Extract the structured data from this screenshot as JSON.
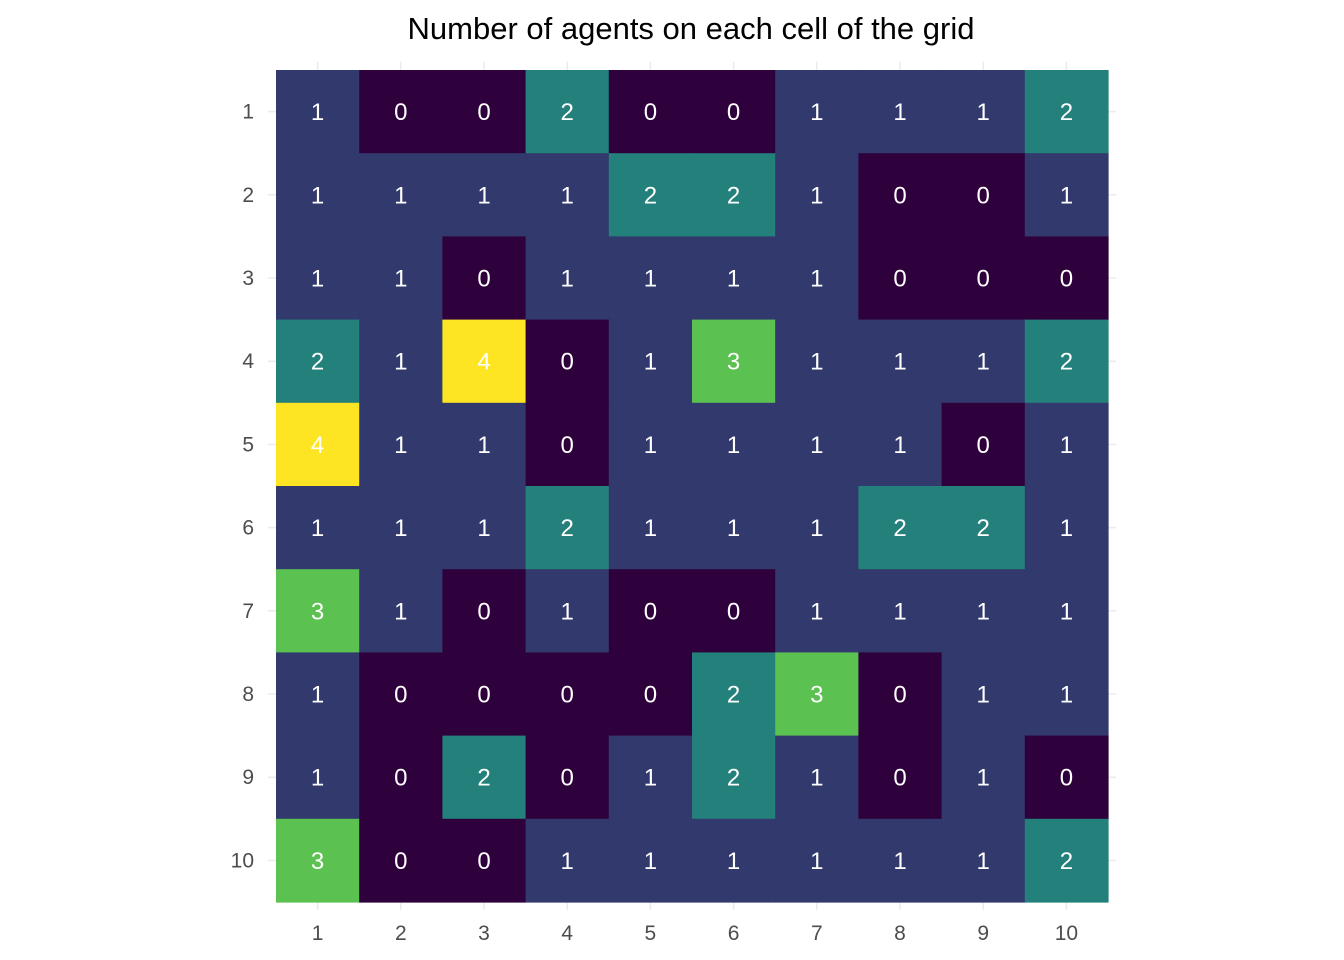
{
  "chart_data": {
    "type": "heatmap",
    "title": "Number of agents on each cell of the grid",
    "xlabel": "",
    "ylabel": "",
    "x_categories": [
      "1",
      "2",
      "3",
      "4",
      "5",
      "6",
      "7",
      "8",
      "9",
      "10"
    ],
    "y_categories": [
      "1",
      "2",
      "3",
      "4",
      "5",
      "6",
      "7",
      "8",
      "9",
      "10"
    ],
    "values": [
      [
        1,
        0,
        0,
        2,
        0,
        0,
        1,
        1,
        1,
        2
      ],
      [
        1,
        1,
        1,
        1,
        2,
        2,
        1,
        0,
        0,
        1
      ],
      [
        1,
        1,
        0,
        1,
        1,
        1,
        1,
        0,
        0,
        0
      ],
      [
        2,
        1,
        4,
        0,
        1,
        3,
        1,
        1,
        1,
        2
      ],
      [
        4,
        1,
        1,
        0,
        1,
        1,
        1,
        1,
        0,
        1
      ],
      [
        1,
        1,
        1,
        2,
        1,
        1,
        1,
        2,
        2,
        1
      ],
      [
        3,
        1,
        0,
        1,
        0,
        0,
        1,
        1,
        1,
        1
      ],
      [
        1,
        0,
        0,
        0,
        0,
        2,
        3,
        0,
        1,
        1
      ],
      [
        1,
        0,
        2,
        0,
        1,
        2,
        1,
        0,
        1,
        0
      ],
      [
        3,
        0,
        0,
        1,
        1,
        1,
        1,
        1,
        1,
        2
      ]
    ],
    "color_scale": {
      "0": "#2f013c",
      "1": "#31396d",
      "2": "#23807a",
      "3": "#5bc150",
      "4": "#fde524"
    },
    "legend": "none",
    "grid": true
  }
}
